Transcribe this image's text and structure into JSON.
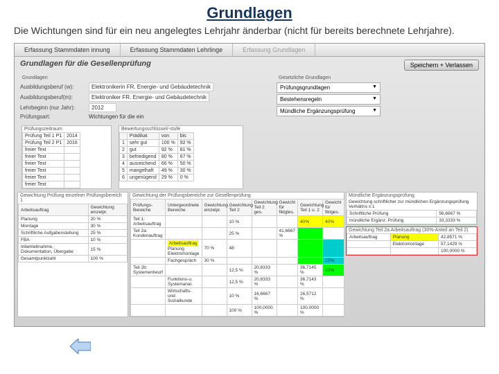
{
  "title": "Grundlagen",
  "subtitle": "Die Wichtungen sind für ein neu angelegtes Lehrjahr änderbar (nicht für bereits berechnete Lehrjahre).",
  "tabs": [
    "Erfassung Stammdaten innung",
    "Erfassung Stammdaten Lehrlinge",
    "Erfassung Grundlagen"
  ],
  "app_header": "Grundlagen für die Gesellenprüfung",
  "save_btn": "Speichern + Verlassen",
  "grundlagen_label": "Grundlagen",
  "fields": {
    "ausbildungsberuf_l": "Ausbildungsberuf (w):",
    "ausbildungsberuf_v": "Elektronikerin FR. Energie- und Gebäudetechnik",
    "ausbildungsberufm_l": "Ausbildungsberuf(m):",
    "ausbildungsberufm_v": "Elektroniker FR. Energie- und Gebäudetechnik",
    "lehrbeginn_l": "Lehrbeginn (nur Jahr):",
    "lehrbeginn_v": "2012",
    "pruefungsart_l": "Prüfungsart:",
    "pruefungsart_v": "Wichtungen für die ein"
  },
  "legal_label": "Gesetzliche Grundlagen",
  "legal_btns": [
    "Prüfungsgrundlagen",
    "Bestehensregeln",
    "Mündliche Ergänzungsprüfung"
  ],
  "zeitraum_label": "Prüfungszeitraum",
  "zeitraum": {
    "cols": [
      "",
      ""
    ],
    "rows": [
      [
        "Prüfung Teil 1 P1",
        "2014"
      ],
      [
        "Prüfung Teil 2 P1",
        "2016"
      ],
      [
        "freier Text",
        ""
      ],
      [
        "freier Text",
        ""
      ],
      [
        "freier Text",
        ""
      ],
      [
        "freier Text",
        ""
      ],
      [
        "freier Text",
        ""
      ],
      [
        "freier Text",
        ""
      ]
    ]
  },
  "schluessel_label": "Bewertungsschlüssel/-stufe",
  "schluessel": {
    "cols": [
      "",
      "Prädikat",
      "von",
      "bis"
    ],
    "rows": [
      [
        "1",
        "sehr gut",
        "100 %",
        "92 %"
      ],
      [
        "2",
        "gut",
        "92 %",
        "81 %"
      ],
      [
        "3",
        "befriedigend",
        "80 %",
        "67 %"
      ],
      [
        "4",
        "ausreichend",
        "66 %",
        "50 %"
      ],
      [
        "5",
        "mangelhaft",
        "49 %",
        "30 %"
      ],
      [
        "6",
        "ungenügend",
        "29 %",
        "0 %"
      ]
    ]
  },
  "gw_left_label": "Gewichtung Prüfung einzelner Prüfungsbereich 1",
  "gw_left": {
    "cols": [
      "Arbeitsauftrag",
      "Gewichtung einzelpr."
    ],
    "rows": [
      [
        "Planung",
        "20 %"
      ],
      [
        "Montage",
        "30 %"
      ],
      [
        "Schriftliche Aufgabenstellung",
        "25 %"
      ],
      [
        "FBA",
        "10 %"
      ],
      [
        "Inbetriebnahme, Dokumentation, Übergabe",
        "15 %"
      ],
      [
        "Gesamtpunktzahl",
        "100 %"
      ]
    ]
  },
  "gw_mid_label": "Gewichtung der Prüfungsbereiche zur Gesellenprüfung",
  "gw_mid_headers": [
    "Prüfungs-Bereiche",
    "Untergeordnete Bereiche",
    "Gewichtung einzelpr.",
    "Gewichtung Teil 2",
    "Gewichtung Teil 2 ges.",
    "Gewicht für fiktgles.",
    "Gewichtung Teil 1 u. 2",
    "Gewicht für fiktges."
  ],
  "gw_mid_rows": [
    {
      "name": "Teil 1: Arbeitsauftrag",
      "sub": "",
      "e": "",
      "t2": "10 %",
      "t2g": "",
      "fg": "",
      "g12_col": "yellow",
      "g12": "40%",
      "gfg_col": "yellow",
      "gfg": "40%"
    },
    {
      "name": "Teil 2a: Kundenauftrag",
      "sub": "",
      "e": "",
      "t2": "25 %",
      "t2g": "",
      "fg": "41,6667 %",
      "g12_col": "green",
      "g12": "",
      "gfg_col": "",
      "gfg": ""
    },
    {
      "name": "",
      "sub": "Arbeitsauftrag",
      "sub_col": "yellow",
      "items": [
        "Planung",
        "Elektromontage"
      ],
      "e": "70 %",
      "t2": "48",
      "t2g": "",
      "fg": "",
      "g12_col": "green",
      "g12": "",
      "gfg_col": "teal",
      "gfg": ""
    },
    {
      "name": "",
      "sub": "Fachgespräch",
      "e": "30 %",
      "t2": "",
      "t2g": "",
      "fg": "",
      "g12_col": "green",
      "g12": "",
      "gfg_col": "teal",
      "gfg": "25%"
    },
    {
      "name": "Teil 2b: Systementwurf",
      "sub": "",
      "e": "",
      "t2": "12,5 %",
      "t2g": "20,8333 %",
      "fg": "",
      "g12_col": "",
      "g12": "36,7145 %",
      "gfg_col": "green",
      "gfg": "35%"
    },
    {
      "name": "",
      "sub": "Funktions-u. Systemanal.",
      "e": "",
      "t2": "12,5 %",
      "t2g": "20,8333 %",
      "fg": "",
      "g12_col": "",
      "g12": "36,7143 %",
      "gfg_col": "",
      "gfg": ""
    },
    {
      "name": "",
      "sub": "Wirtschafts- und Sozialkunde",
      "e": "",
      "t2": "10 %",
      "t2g": "16,6667 %",
      "fg": "",
      "g12_col": "",
      "g12": "26,5712 %",
      "gfg_col": "",
      "gfg": ""
    },
    {
      "name": "",
      "sub": "",
      "e": "",
      "t2": "100 %",
      "t2g": "100,0000 %",
      "fg": "",
      "g12_col": "",
      "g12": "100,0000 %",
      "gfg_col": "",
      "gfg": ""
    }
  ],
  "erg_label": "Mündliche Ergänzungsprüfung",
  "erg_text": "Gewichtung schriftlicher zur mündlichen Ergänzungsprüfung Verhältns x:1",
  "erg_rows": [
    [
      "Schriftliche Prüfung",
      "56,6667 %"
    ],
    [
      "mündliche Ergänz. Prüfung",
      "33,3333 %"
    ]
  ],
  "erg2_label": "Gewichtung Teil 2a Arbeitsauftrag (30%-Anteil an Teil 2)",
  "erg2_rows": [
    [
      "Arbeitsauftrag",
      "Planung",
      "42,8571 %"
    ],
    [
      "",
      "Elektromontage",
      "57,1429 %"
    ],
    [
      "",
      "",
      "100,0000 %"
    ]
  ],
  "colors": {
    "title": "#17365d",
    "yellow": "#ffff00",
    "green": "#00ff00",
    "teal": "#00cccc",
    "red": "#d33333"
  }
}
